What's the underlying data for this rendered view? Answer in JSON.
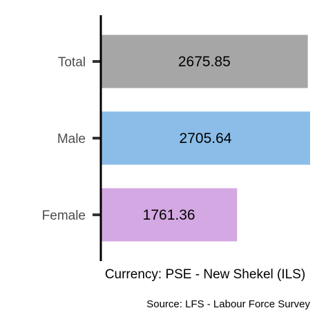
{
  "chart_data": {
    "type": "bar",
    "orientation": "horizontal",
    "categories": [
      "Total",
      "Male",
      "Female"
    ],
    "values": [
      2675.85,
      2705.64,
      1761.36
    ],
    "colors": [
      "#a6a6a6",
      "#8bbde8",
      "#d4a8e2"
    ],
    "xlabel": "Currency: PSE - New Shekel (ILS)",
    "caption": "Source:  LFS - Labour Force Survey",
    "xlim": [
      0,
      2705.64
    ],
    "grid": false,
    "legend": "none"
  }
}
